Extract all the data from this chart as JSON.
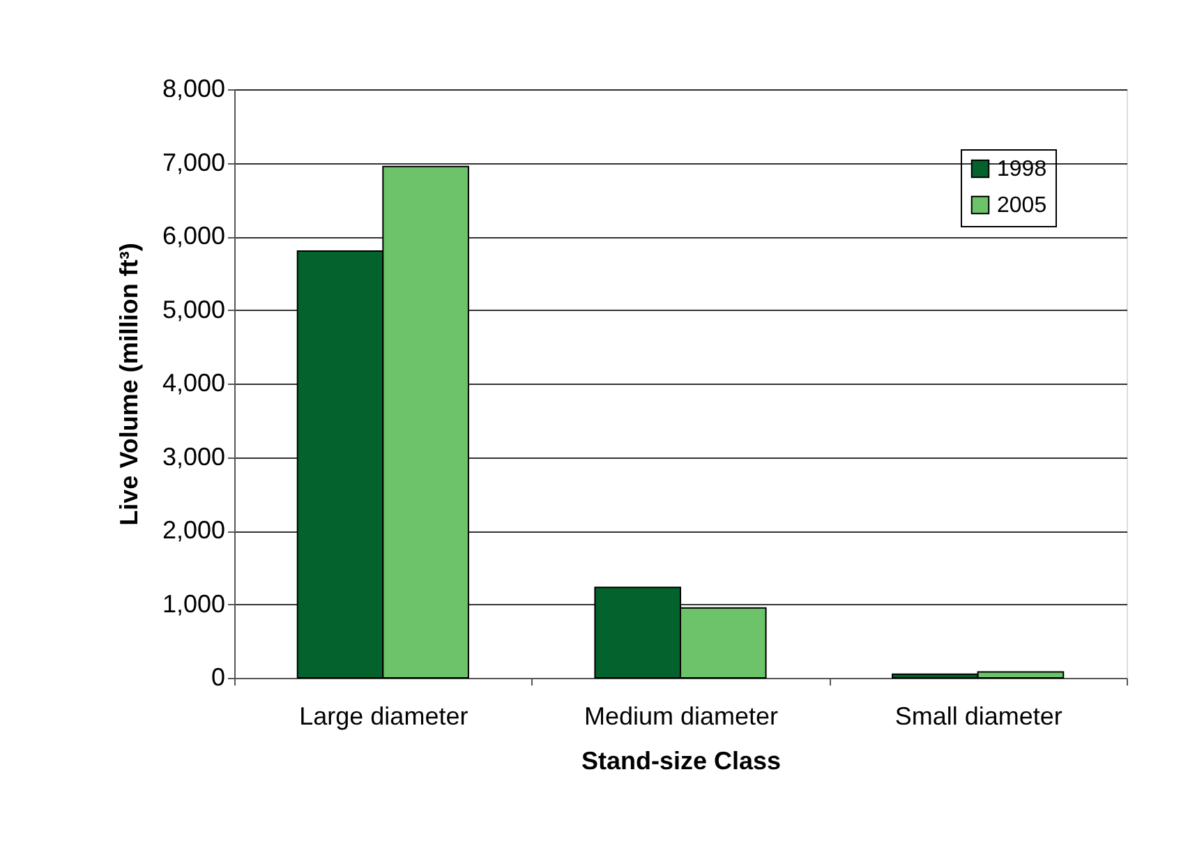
{
  "chart_data": {
    "type": "bar",
    "xlabel": "Stand-size Class",
    "ylabel": "Live Volume (million ft³)",
    "categories": [
      "Large diameter",
      "Medium diameter",
      "Small diameter"
    ],
    "series": [
      {
        "name": "1998",
        "color": "#04632c",
        "values": [
          5800,
          1230,
          50
        ]
      },
      {
        "name": "2005",
        "color": "#6cc36a",
        "values": [
          6950,
          950,
          80
        ]
      }
    ],
    "ylim": [
      0,
      8000
    ],
    "yticks": [
      0,
      {
        "value": 1000,
        "label": "1,000"
      },
      {
        "value": 2000,
        "label": "2,000"
      },
      {
        "value": 3000,
        "label": "3,000"
      },
      {
        "value": 4000,
        "label": "4,000"
      },
      {
        "value": 5000,
        "label": "5,000"
      },
      {
        "value": 6000,
        "label": "6,000"
      },
      {
        "value": 7000,
        "label": "7,000"
      },
      {
        "value": 8000,
        "label": "8,000"
      }
    ],
    "grid": "y",
    "legend": "top right"
  }
}
